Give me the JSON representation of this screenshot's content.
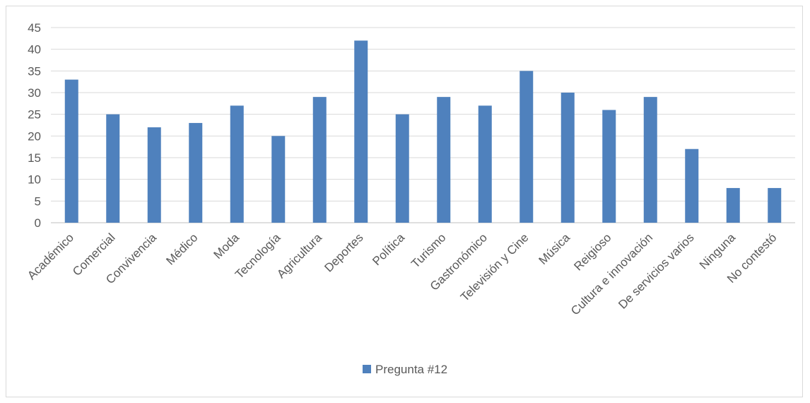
{
  "chart_data": {
    "type": "bar",
    "title": "",
    "xlabel": "",
    "ylabel": "",
    "ylim": [
      0,
      45
    ],
    "yticks": [
      0,
      5,
      10,
      15,
      20,
      25,
      30,
      35,
      40,
      45
    ],
    "grid": true,
    "legend_position": "bottom",
    "categories": [
      "Académico",
      "Comercial",
      "Convivencia",
      "Médico",
      "Moda",
      "Tecnología",
      "Agricultura",
      "Deportes",
      "Política",
      "Turismo",
      "Gastronómico",
      "Televisión y Cine",
      "Música",
      "Reigioso",
      "Cultura e innovación",
      "De servicios varios",
      "Ninguna",
      "No contestó"
    ],
    "series": [
      {
        "name": "Pregunta #12",
        "color": "#4f81bd",
        "values": [
          33,
          25,
          22,
          23,
          27,
          20,
          29,
          42,
          25,
          29,
          27,
          35,
          30,
          26,
          29,
          17,
          8,
          8
        ]
      }
    ]
  }
}
